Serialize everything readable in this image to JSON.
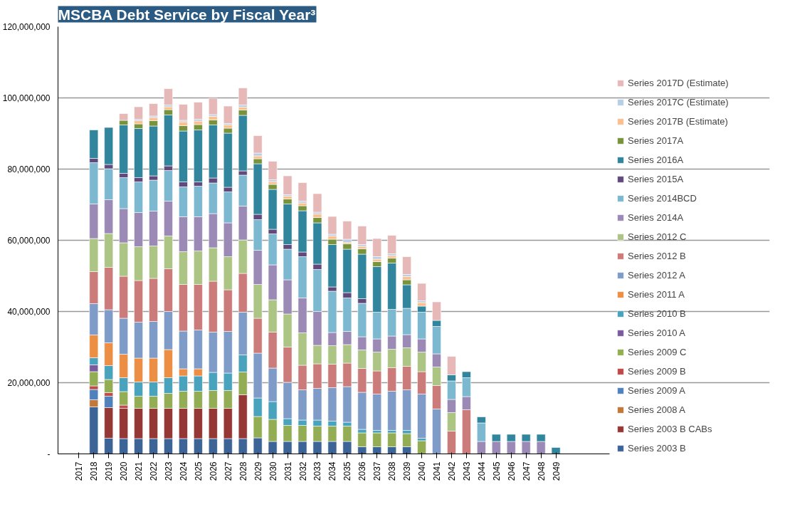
{
  "chart_data": {
    "type": "bar",
    "stacked": true,
    "title": "MSCBA Debt Service by Fiscal Year³",
    "categories": [
      "2017",
      "2018",
      "2019",
      "2020",
      "2021",
      "2022",
      "2023",
      "2024",
      "2025",
      "2026",
      "2027",
      "2028",
      "2029",
      "2030",
      "2031",
      "2032",
      "2033",
      "2034",
      "2035",
      "2036",
      "2037",
      "2038",
      "2039",
      "2040",
      "2041",
      "2042",
      "2043",
      "2044",
      "2045",
      "2046",
      "2047",
      "2048",
      "2049"
    ],
    "ylim": [
      0,
      120000000
    ],
    "yticks": [
      {
        "value": 0,
        "label": "-"
      },
      {
        "value": 20000000,
        "label": "20,000,000"
      },
      {
        "value": 40000000,
        "label": "40,000,000"
      },
      {
        "value": 60000000,
        "label": "60,000,000"
      },
      {
        "value": 80000000,
        "label": "80,000,000"
      },
      {
        "value": 100000000,
        "label": "100,000,000"
      },
      {
        "value": 120000000,
        "label": "120,000,000"
      }
    ],
    "grid": "y",
    "legend": "right",
    "series": [
      {
        "name": "Series 2003 B",
        "color": "#3d6496",
        "values": [
          null,
          13200000,
          4400000,
          4300000,
          4300000,
          4300000,
          4300000,
          4300000,
          4300000,
          4300000,
          4300000,
          4300000,
          4500000,
          3500000,
          3500000,
          3500000,
          3500000,
          3500000,
          3500000,
          2000000,
          2000000,
          2000000,
          2000000,
          null,
          null,
          null,
          null,
          null,
          null,
          null,
          null,
          null,
          null
        ]
      },
      {
        "name": "Series 2003 B CABs",
        "color": "#953735",
        "values": [
          null,
          null,
          8600000,
          8500000,
          8500000,
          8500000,
          8500000,
          8500000,
          8500000,
          8500000,
          8500000,
          12300000,
          null,
          null,
          null,
          null,
          null,
          null,
          null,
          null,
          null,
          null,
          null,
          null,
          null,
          null,
          null,
          null,
          null,
          null,
          null,
          null,
          null
        ]
      },
      {
        "name": "Series 2008 A",
        "color": "#c27838",
        "values": [
          null,
          2000000,
          null,
          null,
          null,
          null,
          null,
          null,
          null,
          null,
          null,
          null,
          null,
          null,
          null,
          null,
          null,
          null,
          null,
          null,
          null,
          null,
          null,
          null,
          null,
          null,
          null,
          null,
          null,
          null,
          null,
          null,
          null
        ]
      },
      {
        "name": "Series 2009 A",
        "color": "#4f81bd",
        "values": [
          null,
          2900000,
          3200000,
          null,
          null,
          null,
          null,
          null,
          null,
          null,
          null,
          null,
          null,
          null,
          null,
          null,
          null,
          null,
          null,
          null,
          null,
          null,
          null,
          null,
          null,
          null,
          null,
          null,
          null,
          null,
          null,
          null,
          null
        ]
      },
      {
        "name": "Series 2009 B",
        "color": "#be4b48",
        "values": [
          null,
          1000000,
          1000000,
          900000,
          null,
          null,
          null,
          null,
          null,
          null,
          null,
          null,
          null,
          null,
          null,
          null,
          null,
          null,
          null,
          null,
          null,
          null,
          null,
          null,
          null,
          null,
          null,
          null,
          null,
          null,
          null,
          null,
          null
        ]
      },
      {
        "name": "Series 2009 C",
        "color": "#93ad54",
        "values": [
          null,
          4000000,
          3700000,
          3800000,
          3400000,
          3400000,
          4200000,
          4800000,
          4800000,
          5000000,
          5000000,
          6400000,
          6000000,
          6200000,
          4500000,
          4500000,
          4300000,
          4300000,
          4300000,
          3900000,
          3900000,
          3900000,
          3700000,
          3700000,
          null,
          null,
          null,
          null,
          null,
          null,
          null,
          null,
          null
        ]
      },
      {
        "name": "Series 2010 A",
        "color": "#7a5c9e",
        "values": [
          null,
          1900000,
          null,
          null,
          null,
          null,
          null,
          null,
          null,
          null,
          null,
          null,
          null,
          null,
          null,
          null,
          null,
          null,
          null,
          null,
          null,
          null,
          null,
          null,
          null,
          null,
          null,
          null,
          null,
          null,
          null,
          null,
          null
        ]
      },
      {
        "name": "Series 2010 B",
        "color": "#4aa3bd",
        "values": [
          null,
          2000000,
          3900000,
          3900000,
          4000000,
          4000000,
          4400000,
          4300000,
          4300000,
          5100000,
          4900000,
          4800000,
          5200000,
          5000000,
          1900000,
          1500000,
          1700000,
          1400000,
          1100000,
          1000000,
          700000,
          700000,
          900000,
          700000,
          null,
          null,
          null,
          null,
          null,
          null,
          null,
          null,
          null
        ]
      },
      {
        "name": "Series 2011 A",
        "color": "#ec8f44",
        "values": [
          null,
          6400000,
          6400000,
          6600000,
          6700000,
          6700000,
          7900000,
          2000000,
          2000000,
          null,
          null,
          null,
          null,
          null,
          null,
          null,
          null,
          null,
          null,
          null,
          null,
          null,
          null,
          null,
          null,
          null,
          null,
          null,
          null,
          null,
          null,
          null,
          null
        ]
      },
      {
        "name": "Series 2012 A",
        "color": "#7f9cc8",
        "values": [
          null,
          8800000,
          9300000,
          10100000,
          10100000,
          10300000,
          10700000,
          10600000,
          10900000,
          11300000,
          11700000,
          12000000,
          12600000,
          9400000,
          10200000,
          8500000,
          8900000,
          9400000,
          10000000,
          10400000,
          10200000,
          11000000,
          11400000,
          12400000,
          12600000,
          null,
          null,
          null,
          null,
          null,
          null,
          null,
          null
        ]
      },
      {
        "name": "Series 2012 B",
        "color": "#cc7b7b",
        "values": [
          null,
          9000000,
          11900000,
          11800000,
          11700000,
          12100000,
          12000000,
          13100000,
          12800000,
          14300000,
          11700000,
          10900000,
          9800000,
          10100000,
          9900000,
          6900000,
          6900000,
          6600000,
          6600000,
          6700000,
          6500000,
          6600000,
          6600000,
          6300000,
          6600000,
          6400000,
          12400000,
          null,
          null,
          null,
          null,
          null,
          null
        ]
      },
      {
        "name": "Series 2012 C",
        "color": "#adc584",
        "values": [
          null,
          9300000,
          9500000,
          9400000,
          9500000,
          9100000,
          9200000,
          9200000,
          9400000,
          9400000,
          9300000,
          9400000,
          9500000,
          9100000,
          9300000,
          9100000,
          5200000,
          5200000,
          5200000,
          5200000,
          5300000,
          5200000,
          5200000,
          5500000,
          5200000,
          5200000,
          null,
          null,
          null,
          null,
          null,
          null,
          null
        ]
      },
      {
        "name": "Series 2014A",
        "color": "#9b8ab5",
        "values": [
          null,
          9700000,
          9500000,
          9600000,
          9600000,
          9800000,
          9800000,
          9800000,
          9600000,
          9600000,
          9500000,
          9500000,
          9600000,
          9800000,
          9600000,
          9800000,
          9500000,
          3700000,
          3700000,
          3700000,
          3700000,
          3700000,
          3700000,
          3700000,
          3700000,
          3700000,
          3700000,
          3500000,
          3500000,
          3500000,
          3500000,
          3500000,
          null
        ]
      },
      {
        "name": "Series 2014BCD",
        "color": "#7cb9d0",
        "values": [
          null,
          11600000,
          8700000,
          8700000,
          8600000,
          8700000,
          8600000,
          8400000,
          8600000,
          8600000,
          8700000,
          8700000,
          8600000,
          8700000,
          8600000,
          11600000,
          11800000,
          11600000,
          9400000,
          9400000,
          7500000,
          7500000,
          7400000,
          7500000,
          7700000,
          5200000,
          5300000,
          5200000,
          null,
          null,
          null,
          null,
          null
        ]
      },
      {
        "name": "Series 2015A",
        "color": "#604a7b",
        "values": [
          null,
          1200000,
          1200000,
          1200000,
          1200000,
          1200000,
          1300000,
          1400000,
          1200000,
          1400000,
          1300000,
          1200000,
          1500000,
          1300000,
          1300000,
          1300000,
          1500000,
          1200000,
          1500000,
          1300000,
          null,
          null,
          null,
          null,
          null,
          null,
          null,
          null,
          null,
          null,
          null,
          null,
          null
        ]
      },
      {
        "name": "Series 2016A",
        "color": "#31859c",
        "values": [
          null,
          8000000,
          10400000,
          13600000,
          13800000,
          14000000,
          14300000,
          14300000,
          14600000,
          14900000,
          15200000,
          15600000,
          14200000,
          11200000,
          11400000,
          11600000,
          11600000,
          11900000,
          12200000,
          12500000,
          12800000,
          13000000,
          6600000,
          1700000,
          1700000,
          1700000,
          1700000,
          1700000,
          2000000,
          2000000,
          2000000,
          2000000,
          1800000
        ]
      },
      {
        "name": "Series 2017A",
        "color": "#77933c",
        "values": [
          null,
          null,
          null,
          1300000,
          1300000,
          1500000,
          1500000,
          1500000,
          1500000,
          1400000,
          1400000,
          1500000,
          1400000,
          1400000,
          1400000,
          1400000,
          1500000,
          1500000,
          1500000,
          1500000,
          1400000,
          1400000,
          1400000,
          null,
          null,
          null,
          null,
          null,
          null,
          null,
          null,
          null,
          null
        ]
      },
      {
        "name": "Series 2017B (Estimate)",
        "color": "#fac090",
        "values": [
          null,
          null,
          null,
          null,
          900000,
          900000,
          800000,
          1100000,
          1000000,
          1000000,
          900000,
          800000,
          800000,
          800000,
          800000,
          800000,
          1000000,
          900000,
          400000,
          700000,
          700000,
          700000,
          900000,
          1000000,
          null,
          null,
          null,
          null,
          null,
          null,
          null,
          null,
          null
        ]
      },
      {
        "name": "Series 2017C (Estimate)",
        "color": "#b9cde5",
        "values": [
          null,
          null,
          null,
          null,
          400000,
          400000,
          500000,
          400000,
          500000,
          500000,
          400000,
          600000,
          800000,
          500000,
          400000,
          500000,
          500000,
          500000,
          900000,
          500000,
          700000,
          500000,
          600000,
          500000,
          null,
          null,
          null,
          null,
          null,
          null,
          null,
          null,
          null
        ]
      },
      {
        "name": "Series 2017D (Estimate)",
        "color": "#e6b9b8",
        "values": [
          null,
          null,
          null,
          1900000,
          3500000,
          3500000,
          4600000,
          4500000,
          4800000,
          4600000,
          4900000,
          4800000,
          4900000,
          5200000,
          5300000,
          5200000,
          5200000,
          5000000,
          5100000,
          5200000,
          5100000,
          5200000,
          5000000,
          4900000,
          5200000,
          5200000,
          null,
          null,
          null,
          null,
          null,
          null,
          null
        ]
      }
    ]
  }
}
